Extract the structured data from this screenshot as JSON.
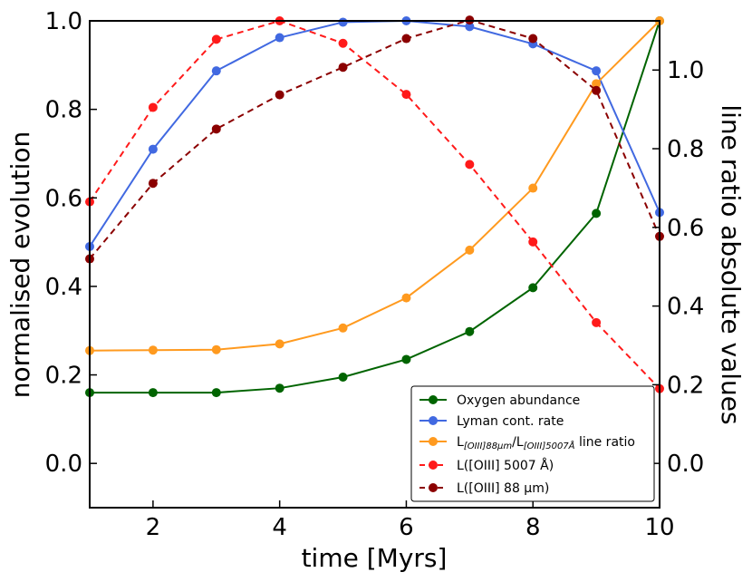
{
  "chart_data": {
    "type": "line",
    "xlabel": "time [Myrs]",
    "ylabel": "normalised evolution",
    "y2label": "line ratio absolute values",
    "xlim": [
      1,
      10
    ],
    "ylim": [
      -0.1,
      1.0
    ],
    "y2lim": [
      -0.1125,
      1.125
    ],
    "xticks": [
      "2",
      "4",
      "6",
      "8",
      "10"
    ],
    "yticks": [
      "0.0",
      "0.2",
      "0.4",
      "0.6",
      "0.8",
      "1.0"
    ],
    "y2ticks": [
      "0.0",
      "0.2",
      "0.4",
      "0.6",
      "0.8",
      "1.0"
    ],
    "grid": false,
    "legend_position": "lower-right",
    "x": [
      1,
      2,
      3,
      4,
      5,
      6,
      7,
      8,
      9,
      10
    ],
    "series": [
      {
        "name": "Oxygen abundance",
        "axis": "left",
        "color": "#006400",
        "dashed": false,
        "values": [
          0.16,
          0.16,
          0.16,
          0.17,
          0.195,
          0.235,
          0.298,
          0.397,
          0.565,
          1.0
        ]
      },
      {
        "name": "Lyman cont. rate",
        "axis": "left",
        "color": "#4169e1",
        "dashed": false,
        "values": [
          0.49,
          0.71,
          0.887,
          0.962,
          0.997,
          1.0,
          0.987,
          0.948,
          0.887,
          0.567
        ]
      },
      {
        "name": "L[OIII]88μm/L[OIII]5007Å line ratio",
        "legend_base": "L",
        "legend_sub1": "[OIII]88μm",
        "legend_mid": "/L",
        "legend_sub2": "[OIII]5007Å",
        "legend_tail": " line ratio",
        "axis": "left",
        "color": "#ff9a1f",
        "dashed": false,
        "values": [
          0.255,
          0.256,
          0.257,
          0.27,
          0.306,
          0.374,
          0.482,
          0.622,
          0.858,
          1.0
        ]
      },
      {
        "name": "L([OIII] 5007 Å)",
        "axis": "right",
        "color": "#ff1a1a",
        "dashed": true,
        "values": [
          0.665,
          0.905,
          1.078,
          1.125,
          1.068,
          0.938,
          0.76,
          0.563,
          0.358,
          0.19
        ]
      },
      {
        "name": "L([OIII] 88 μm)",
        "axis": "right",
        "color": "#8b0000",
        "dashed": true,
        "values": [
          0.52,
          0.712,
          0.85,
          0.937,
          1.007,
          1.08,
          1.127,
          1.08,
          0.948,
          0.577
        ]
      }
    ]
  }
}
